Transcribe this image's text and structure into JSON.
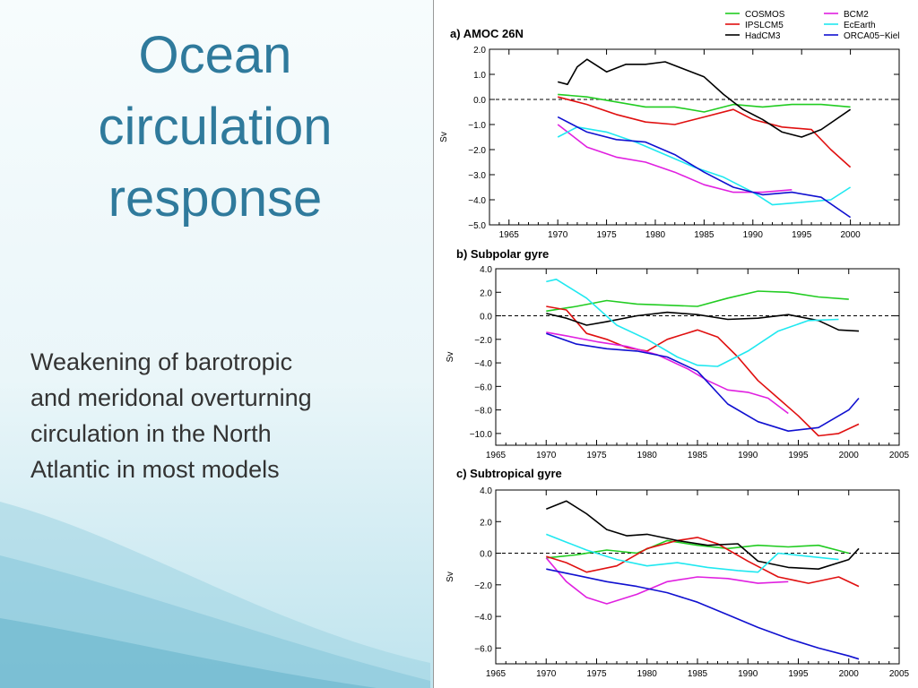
{
  "slide": {
    "title_lines": [
      "Ocean",
      "circulation",
      "response"
    ],
    "body_lines": [
      "Weakening of barotropic",
      "and meridonal overturning",
      "circulation in the North",
      "Atlantic in most models"
    ]
  },
  "colors": {
    "COSMOS": "#22cc22",
    "IPSLCM5": "#e01010",
    "HadCM3": "#000000",
    "BCM2": "#e020e0",
    "EcEarth": "#20e8f0",
    "ORCA05-Kiel": "#1010d0"
  },
  "legend": {
    "entries": [
      {
        "label": "COSMOS",
        "key": "COSMOS"
      },
      {
        "label": "IPSLCM5",
        "key": "IPSLCM5"
      },
      {
        "label": "HadCM3",
        "key": "HadCM3"
      },
      {
        "label": "BCM2",
        "key": "BCM2"
      },
      {
        "label": "EcEarth",
        "key": "EcEarth"
      },
      {
        "label": "ORCA05−Kiel",
        "key": "ORCA05-Kiel"
      }
    ]
  },
  "chart_data": [
    {
      "type": "line",
      "title": "a) AMOC 26N",
      "ylabel": "Sv",
      "xlim": [
        1963,
        2005
      ],
      "ylim": [
        -5.0,
        2.0
      ],
      "xticks": [
        1965,
        1970,
        1975,
        1980,
        1985,
        1990,
        1995,
        2000
      ],
      "yticks": [
        2.0,
        1.0,
        0.0,
        -1.0,
        -2.0,
        -3.0,
        -4.0,
        -5.0
      ],
      "ytick_labels": [
        "2.0",
        "1.0",
        "0.0",
        "−1.0",
        "−2.0",
        "−3.0",
        "−4.0",
        "−5.0"
      ],
      "zero_line": true,
      "series": [
        {
          "key": "COSMOS",
          "x": [
            1970,
            1973,
            1976,
            1979,
            1982,
            1985,
            1988,
            1991,
            1994,
            1997,
            2000
          ],
          "y": [
            0.2,
            0.1,
            -0.1,
            -0.3,
            -0.3,
            -0.5,
            -0.2,
            -0.3,
            -0.2,
            -0.2,
            -0.3
          ]
        },
        {
          "key": "IPSLCM5",
          "x": [
            1970,
            1973,
            1976,
            1979,
            1982,
            1985,
            1988,
            1990,
            1993,
            1996,
            1998,
            2000
          ],
          "y": [
            0.1,
            -0.2,
            -0.6,
            -0.9,
            -1.0,
            -0.7,
            -0.4,
            -0.8,
            -1.1,
            -1.2,
            -2.0,
            -2.7
          ]
        },
        {
          "key": "HadCM3",
          "x": [
            1970,
            1971,
            1972,
            1973,
            1975,
            1977,
            1979,
            1981,
            1983,
            1985,
            1987,
            1989,
            1991,
            1993,
            1995,
            1997,
            2000
          ],
          "y": [
            0.7,
            0.6,
            1.3,
            1.6,
            1.1,
            1.4,
            1.4,
            1.5,
            1.2,
            0.9,
            0.2,
            -0.4,
            -0.8,
            -1.3,
            -1.5,
            -1.2,
            -0.4
          ]
        },
        {
          "key": "BCM2",
          "x": [
            1970,
            1973,
            1976,
            1979,
            1982,
            1985,
            1988,
            1991,
            1994
          ],
          "y": [
            -1.0,
            -1.9,
            -2.3,
            -2.5,
            -2.9,
            -3.4,
            -3.7,
            -3.7,
            -3.6
          ]
        },
        {
          "key": "EcEarth",
          "x": [
            1970,
            1972,
            1975,
            1978,
            1981,
            1984,
            1987,
            1990,
            1992,
            1995,
            1998,
            2000
          ],
          "y": [
            -1.5,
            -1.1,
            -1.3,
            -1.7,
            -2.2,
            -2.7,
            -3.1,
            -3.7,
            -4.2,
            -4.1,
            -4.0,
            -3.5
          ]
        },
        {
          "key": "ORCA05-Kiel",
          "x": [
            1970,
            1973,
            1976,
            1979,
            1982,
            1985,
            1988,
            1991,
            1994,
            1997,
            2000
          ],
          "y": [
            -0.7,
            -1.3,
            -1.6,
            -1.7,
            -2.2,
            -2.9,
            -3.5,
            -3.8,
            -3.7,
            -3.9,
            -4.7
          ]
        }
      ]
    },
    {
      "type": "line",
      "title": "b) Subpolar gyre",
      "ylabel": "Sv",
      "xlim": [
        1965,
        2005
      ],
      "ylim": [
        -11.0,
        4.0
      ],
      "xticks": [
        1965,
        1970,
        1975,
        1980,
        1985,
        1990,
        1995,
        2000,
        2005
      ],
      "yticks": [
        4.0,
        2.0,
        0.0,
        -2.0,
        -4.0,
        -6.0,
        -8.0,
        -10.0
      ],
      "ytick_labels": [
        "4.0",
        "2.0",
        "0.0",
        "−2.0",
        "−4.0",
        "−6.0",
        "−8.0",
        "−10.0"
      ],
      "zero_line": true,
      "series": [
        {
          "key": "COSMOS",
          "x": [
            1970,
            1973,
            1976,
            1979,
            1982,
            1985,
            1988,
            1991,
            1994,
            1997,
            2000
          ],
          "y": [
            0.4,
            0.8,
            1.3,
            1.0,
            0.9,
            0.8,
            1.5,
            2.1,
            2.0,
            1.6,
            1.4
          ]
        },
        {
          "key": "IPSLCM5",
          "x": [
            1970,
            1972,
            1974,
            1976,
            1978,
            1980,
            1982,
            1985,
            1987,
            1989,
            1991,
            1993,
            1995,
            1997,
            1999,
            2001
          ],
          "y": [
            0.8,
            0.5,
            -1.5,
            -2.0,
            -2.7,
            -3.0,
            -2.0,
            -1.2,
            -1.8,
            -3.5,
            -5.5,
            -7.0,
            -8.5,
            -10.2,
            -10.0,
            -9.2
          ]
        },
        {
          "key": "HadCM3",
          "x": [
            1970,
            1972,
            1974,
            1976,
            1979,
            1982,
            1985,
            1988,
            1991,
            1994,
            1997,
            1999,
            2001
          ],
          "y": [
            0.2,
            -0.2,
            -0.8,
            -0.5,
            0.0,
            0.3,
            0.1,
            -0.3,
            -0.2,
            0.1,
            -0.4,
            -1.2,
            -1.3
          ]
        },
        {
          "key": "BCM2",
          "x": [
            1970,
            1972,
            1975,
            1978,
            1981,
            1984,
            1986,
            1988,
            1990,
            1992,
            1994
          ],
          "y": [
            -1.4,
            -1.7,
            -2.2,
            -2.6,
            -3.3,
            -4.5,
            -5.5,
            -6.3,
            -6.5,
            -7.0,
            -8.3
          ]
        },
        {
          "key": "EcEarth",
          "x": [
            1970,
            1971,
            1974,
            1977,
            1980,
            1983,
            1985,
            1987,
            1990,
            1993,
            1996,
            1999
          ],
          "y": [
            2.9,
            3.1,
            1.5,
            -0.8,
            -2.0,
            -3.5,
            -4.2,
            -4.3,
            -3.0,
            -1.3,
            -0.4,
            -0.3
          ]
        },
        {
          "key": "ORCA05-Kiel",
          "x": [
            1970,
            1973,
            1976,
            1979,
            1982,
            1985,
            1988,
            1991,
            1994,
            1997,
            2000,
            2001
          ],
          "y": [
            -1.5,
            -2.4,
            -2.8,
            -3.0,
            -3.5,
            -4.7,
            -7.5,
            -9.0,
            -9.8,
            -9.5,
            -8.0,
            -7.0
          ]
        }
      ]
    },
    {
      "type": "line",
      "title": "c) Subtropical gyre",
      "ylabel": "Sv",
      "xlim": [
        1965,
        2005
      ],
      "ylim": [
        -7.0,
        4.0
      ],
      "xticks": [
        1965,
        1970,
        1975,
        1980,
        1985,
        1990,
        1995,
        2000,
        2005
      ],
      "yticks": [
        4.0,
        2.0,
        0.0,
        -2.0,
        -4.0,
        -6.0
      ],
      "ytick_labels": [
        "4.0",
        "2.0",
        "0.0",
        "−2.0",
        "−4.0",
        "−6.0"
      ],
      "zero_line": true,
      "series": [
        {
          "key": "COSMOS",
          "x": [
            1970,
            1973,
            1976,
            1979,
            1982,
            1985,
            1988,
            1991,
            1994,
            1997,
            2000
          ],
          "y": [
            -0.3,
            -0.1,
            0.2,
            0.0,
            0.8,
            0.5,
            0.3,
            0.5,
            0.4,
            0.5,
            0.0
          ]
        },
        {
          "key": "IPSLCM5",
          "x": [
            1970,
            1972,
            1974,
            1977,
            1980,
            1983,
            1985,
            1987,
            1990,
            1993,
            1996,
            1999,
            2001
          ],
          "y": [
            -0.2,
            -0.6,
            -1.2,
            -0.8,
            0.3,
            0.8,
            1.0,
            0.6,
            -0.5,
            -1.5,
            -1.9,
            -1.5,
            -2.1
          ]
        },
        {
          "key": "HadCM3",
          "x": [
            1970,
            1972,
            1974,
            1976,
            1978,
            1980,
            1983,
            1986,
            1989,
            1991,
            1994,
            1997,
            2000,
            2001
          ],
          "y": [
            2.8,
            3.3,
            2.5,
            1.5,
            1.1,
            1.2,
            0.8,
            0.5,
            0.6,
            -0.5,
            -0.9,
            -1.0,
            -0.4,
            0.3
          ]
        },
        {
          "key": "BCM2",
          "x": [
            1970,
            1972,
            1974,
            1976,
            1979,
            1982,
            1985,
            1988,
            1991,
            1994
          ],
          "y": [
            -0.3,
            -1.8,
            -2.8,
            -3.2,
            -2.6,
            -1.8,
            -1.5,
            -1.6,
            -1.9,
            -1.8
          ]
        },
        {
          "key": "EcEarth",
          "x": [
            1970,
            1972,
            1974,
            1977,
            1980,
            1983,
            1986,
            1989,
            1991,
            1993,
            1996,
            1999
          ],
          "y": [
            1.2,
            0.7,
            0.2,
            -0.4,
            -0.8,
            -0.6,
            -0.9,
            -1.1,
            -1.2,
            0.0,
            -0.2,
            -0.4
          ]
        },
        {
          "key": "ORCA05-Kiel",
          "x": [
            1970,
            1973,
            1976,
            1979,
            1982,
            1985,
            1988,
            1991,
            1994,
            1997,
            2000,
            2001
          ],
          "y": [
            -1.0,
            -1.4,
            -1.8,
            -2.1,
            -2.5,
            -3.1,
            -3.9,
            -4.7,
            -5.4,
            -6.0,
            -6.5,
            -6.7
          ]
        }
      ]
    }
  ]
}
